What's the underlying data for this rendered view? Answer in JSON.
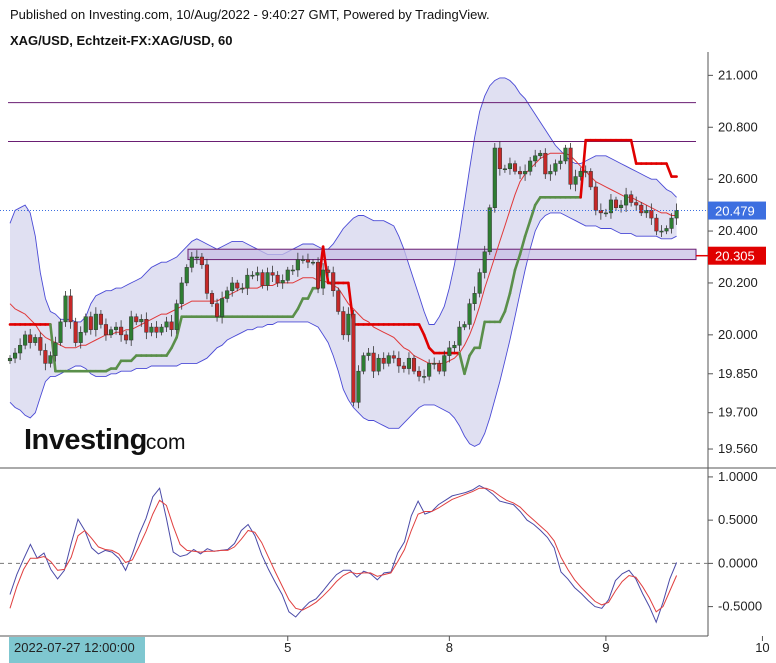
{
  "header": {
    "published": "Published on Investing.com, 10/Aug/2022 - 9:40:27 GMT, Powered by TradingView.",
    "symbol": "XAG/USD, Echtzeit-FX:XAG/USD, 60"
  },
  "brand": {
    "name": "Investing",
    "suffix": ".com"
  },
  "colors": {
    "band_fill": "#8f8fd0",
    "band_line": "#4b4bd6",
    "ma_line": "#e0393a",
    "supertrend_red": "#e00000",
    "supertrend_green": "#5a8f4a",
    "candle_up": "#2e7d32",
    "candle_down": "#c62828",
    "level_line": "#6a1e73",
    "zone_fill": "#c8c0e6",
    "last_price_box": "#3d6fe0",
    "red_box": "#e00000",
    "osc_blue": "#4b4ba8",
    "osc_red": "#e04040",
    "date_box": "#7fc7d0"
  },
  "chart_data": [
    {
      "type": "candlestick",
      "title": "XAG/USD, Echtzeit-FX:XAG/USD, 60",
      "yticks": [
        "21.000",
        "20.800",
        "20.600",
        "20.400",
        "20.200",
        "20.000",
        "19.850",
        "19.700",
        "19.560"
      ],
      "ylim": [
        19.51,
        21.09
      ],
      "x_ticks": [
        "5",
        "8",
        "9",
        "10"
      ],
      "x_tick_index": [
        55,
        87,
        118,
        149
      ],
      "cursor_label": "2022-07-27 12:00:00",
      "last_price": "20.479",
      "red_label": "20.305",
      "level_lines": [
        20.895,
        20.745
      ],
      "zone": [
        20.29,
        20.33
      ],
      "close": [
        19.91,
        19.93,
        19.96,
        20.0,
        19.97,
        19.99,
        19.94,
        19.89,
        19.92,
        19.97,
        20.05,
        20.15,
        20.05,
        19.97,
        20.01,
        20.07,
        20.02,
        20.08,
        20.04,
        20.0,
        20.02,
        20.03,
        20.0,
        19.98,
        20.07,
        20.05,
        20.06,
        20.01,
        20.03,
        20.01,
        20.03,
        20.05,
        20.02,
        20.12,
        20.2,
        20.26,
        20.3,
        20.3,
        20.27,
        20.16,
        20.12,
        20.07,
        20.14,
        20.17,
        20.2,
        20.18,
        20.18,
        20.23,
        20.23,
        20.24,
        20.19,
        20.24,
        20.23,
        20.2,
        20.21,
        20.25,
        20.25,
        20.29,
        20.29,
        20.28,
        20.28,
        20.18,
        20.25,
        20.24,
        20.17,
        20.09,
        20.0,
        20.08,
        19.74,
        19.86,
        19.92,
        19.93,
        19.86,
        19.91,
        19.89,
        19.92,
        19.91,
        19.88,
        19.87,
        19.91,
        19.86,
        19.84,
        19.84,
        19.89,
        19.89,
        19.86,
        19.92,
        19.95,
        19.96,
        20.03,
        20.04,
        20.12,
        20.16,
        20.24,
        20.32,
        20.49,
        20.72,
        20.64,
        20.64,
        20.66,
        20.63,
        20.62,
        20.63,
        20.67,
        20.69,
        20.7,
        20.62,
        20.63,
        20.66,
        20.67,
        20.72,
        20.58,
        20.61,
        20.63,
        20.63,
        20.57,
        20.48,
        20.47,
        20.47,
        20.52,
        20.49,
        20.5,
        20.54,
        20.51,
        20.5,
        20.47,
        20.48,
        20.45,
        20.4,
        20.4,
        20.41,
        20.45,
        20.48
      ],
      "bb_upper": [
        20.43,
        20.48,
        20.49,
        20.5,
        20.47,
        20.38,
        20.24,
        20.14,
        20.09,
        20.08,
        20.06,
        20.06,
        20.06,
        20.05,
        20.05,
        20.07,
        20.12,
        20.15,
        20.16,
        20.17,
        20.17,
        20.18,
        20.18,
        20.19,
        20.2,
        20.21,
        20.22,
        20.24,
        20.26,
        20.27,
        20.28,
        20.28,
        20.29,
        20.3,
        20.32,
        20.34,
        20.36,
        20.37,
        20.36,
        20.35,
        20.34,
        20.33,
        20.34,
        20.35,
        20.36,
        20.36,
        20.36,
        20.35,
        20.34,
        20.33,
        20.32,
        20.31,
        20.31,
        20.31,
        20.31,
        20.32,
        20.33,
        20.34,
        20.35,
        20.35,
        20.35,
        20.34,
        20.33,
        20.33,
        20.35,
        20.38,
        20.41,
        20.43,
        20.45,
        20.46,
        20.46,
        20.45,
        20.44,
        20.44,
        20.44,
        20.43,
        20.42,
        20.38,
        20.33,
        20.27,
        20.21,
        20.15,
        20.09,
        20.04,
        20.04,
        20.07,
        20.11,
        20.18,
        20.27,
        20.38,
        20.51,
        20.64,
        20.76,
        20.86,
        20.92,
        20.96,
        20.98,
        20.99,
        20.99,
        20.98,
        20.96,
        20.93,
        20.91,
        20.88,
        20.85,
        20.82,
        20.79,
        20.76,
        20.73,
        20.71,
        20.69,
        20.67,
        20.66,
        20.66,
        20.67,
        20.68,
        20.69,
        20.69,
        20.69,
        20.68,
        20.67,
        20.66,
        20.65,
        20.64,
        20.63,
        20.62,
        20.61,
        20.6,
        20.6,
        20.58,
        20.56,
        20.55,
        20.53
      ],
      "bb_lower": [
        19.74,
        19.72,
        19.71,
        19.69,
        19.68,
        19.7,
        19.76,
        19.82,
        19.84,
        19.84,
        19.85,
        19.86,
        19.87,
        19.88,
        19.88,
        19.87,
        19.85,
        19.84,
        19.84,
        19.84,
        19.85,
        19.85,
        19.86,
        19.86,
        19.86,
        19.87,
        19.87,
        19.87,
        19.88,
        19.88,
        19.88,
        19.88,
        19.88,
        19.88,
        19.89,
        19.89,
        19.89,
        19.89,
        19.9,
        19.91,
        19.93,
        19.95,
        19.96,
        19.98,
        19.99,
        20.0,
        20.01,
        20.02,
        20.02,
        20.03,
        20.03,
        20.04,
        20.04,
        20.05,
        20.05,
        20.05,
        20.05,
        20.05,
        20.05,
        20.05,
        20.04,
        20.03,
        20.0,
        19.97,
        19.92,
        19.86,
        19.79,
        19.75,
        19.72,
        19.7,
        19.68,
        19.67,
        19.67,
        19.66,
        19.65,
        19.64,
        19.64,
        19.64,
        19.66,
        19.68,
        19.7,
        19.72,
        19.73,
        19.73,
        19.73,
        19.72,
        19.71,
        19.7,
        19.68,
        19.65,
        19.61,
        19.58,
        19.57,
        19.58,
        19.62,
        19.68,
        19.75,
        19.82,
        19.9,
        19.98,
        20.07,
        20.16,
        20.25,
        20.33,
        20.4,
        20.44,
        20.46,
        20.47,
        20.47,
        20.47,
        20.46,
        20.45,
        20.44,
        20.43,
        20.42,
        20.42,
        20.42,
        20.41,
        20.41,
        20.41,
        20.4,
        20.39,
        20.39,
        20.39,
        20.38,
        20.38,
        20.38,
        20.38,
        20.38,
        20.37,
        20.37,
        20.37,
        20.38
      ],
      "sma": [
        20.12,
        20.1,
        20.09,
        20.08,
        20.06,
        20.04,
        20.01,
        19.99,
        19.98,
        19.97,
        19.96,
        19.95,
        19.95,
        19.95,
        19.96,
        19.96,
        19.97,
        19.98,
        19.99,
        20.0,
        20.0,
        20.01,
        20.01,
        20.02,
        20.02,
        20.03,
        20.04,
        20.05,
        20.06,
        20.07,
        20.08,
        20.08,
        20.09,
        20.1,
        20.11,
        20.12,
        20.13,
        20.13,
        20.13,
        20.13,
        20.13,
        20.13,
        20.14,
        20.15,
        20.16,
        20.17,
        20.18,
        20.18,
        20.18,
        20.18,
        20.19,
        20.19,
        20.19,
        20.2,
        20.2,
        20.2,
        20.2,
        20.21,
        20.22,
        20.22,
        20.22,
        20.21,
        20.21,
        20.2,
        20.19,
        20.18,
        20.15,
        20.12,
        20.1,
        20.08,
        20.06,
        20.05,
        20.03,
        20.02,
        20.01,
        20.0,
        19.99,
        19.97,
        19.95,
        19.94,
        19.92,
        19.91,
        19.9,
        19.89,
        19.89,
        19.89,
        19.89,
        19.9,
        19.91,
        19.93,
        19.96,
        20.0,
        20.05,
        20.11,
        20.18,
        20.24,
        20.3,
        20.36,
        20.42,
        20.48,
        20.54,
        20.59,
        20.62,
        20.64,
        20.66,
        20.68,
        20.69,
        20.7,
        20.7,
        20.7,
        20.7,
        20.69,
        20.67,
        20.65,
        20.63,
        20.61,
        20.59,
        20.58,
        20.57,
        20.56,
        20.55,
        20.54,
        20.53,
        20.53,
        20.52,
        20.51,
        20.5,
        20.49,
        20.48,
        20.47,
        20.47,
        20.46,
        20.46
      ],
      "supertrend": [
        20.04,
        20.04,
        20.04,
        20.04,
        20.04,
        20.04,
        20.04,
        20.04,
        20.04,
        19.86,
        19.86,
        19.86,
        19.86,
        19.86,
        19.86,
        19.86,
        19.86,
        19.86,
        19.86,
        19.86,
        19.87,
        19.87,
        19.9,
        19.9,
        19.9,
        19.92,
        19.92,
        19.92,
        19.92,
        19.92,
        19.92,
        19.92,
        19.95,
        19.99,
        20.07,
        20.07,
        20.07,
        20.07,
        20.07,
        20.07,
        20.07,
        20.07,
        20.07,
        20.07,
        20.07,
        20.07,
        20.07,
        20.07,
        20.07,
        20.07,
        20.07,
        20.07,
        20.07,
        20.07,
        20.07,
        20.07,
        20.07,
        20.1,
        20.14,
        20.14,
        20.18,
        20.18,
        20.34,
        20.2,
        20.2,
        20.2,
        20.2,
        20.2,
        20.04,
        20.04,
        20.04,
        20.04,
        20.04,
        20.04,
        20.04,
        20.04,
        20.04,
        20.04,
        20.04,
        20.04,
        20.04,
        20.04,
        20.0,
        19.95,
        19.93,
        19.93,
        19.93,
        19.93,
        19.93,
        19.93,
        19.85,
        19.92,
        19.95,
        19.95,
        20.05,
        20.05,
        20.05,
        20.05,
        20.09,
        20.16,
        20.25,
        20.31,
        20.38,
        20.44,
        20.5,
        20.53,
        20.53,
        20.53,
        20.53,
        20.53,
        20.53,
        20.53,
        20.53,
        20.53,
        20.75,
        20.75,
        20.75,
        20.75,
        20.75,
        20.75,
        20.75,
        20.75,
        20.75,
        20.75,
        20.66,
        20.66,
        20.66,
        20.66,
        20.66,
        20.66,
        20.66,
        20.61,
        20.61,
        20.56,
        20.56,
        20.5,
        20.5,
        20.5
      ],
      "supertrend_direction": [
        "down",
        "down",
        "down",
        "down",
        "down",
        "down",
        "down",
        "down",
        "down",
        "up",
        "up",
        "up",
        "up",
        "up",
        "up",
        "up",
        "up",
        "up",
        "up",
        "up",
        "up",
        "up",
        "up",
        "up",
        "up",
        "up",
        "up",
        "up",
        "up",
        "up",
        "up",
        "up",
        "up",
        "up",
        "up",
        "up",
        "up",
        "up",
        "up",
        "up",
        "up",
        "up",
        "up",
        "up",
        "up",
        "up",
        "up",
        "up",
        "up",
        "up",
        "up",
        "up",
        "up",
        "up",
        "up",
        "up",
        "up",
        "up",
        "up",
        "up",
        "up",
        "up",
        "down",
        "down",
        "down",
        "down",
        "down",
        "down",
        "down",
        "down",
        "down",
        "down",
        "down",
        "down",
        "down",
        "down",
        "down",
        "down",
        "down",
        "down",
        "down",
        "down",
        "down",
        "down",
        "down",
        "down",
        "down",
        "down",
        "down",
        "down",
        "up",
        "up",
        "up",
        "up",
        "up",
        "up",
        "up",
        "up",
        "up",
        "up",
        "up",
        "up",
        "up",
        "up",
        "up",
        "up",
        "up",
        "up",
        "up",
        "up",
        "up",
        "up",
        "up",
        "up",
        "down",
        "down",
        "down",
        "down",
        "down",
        "down",
        "down",
        "down",
        "down",
        "down",
        "down",
        "down",
        "down",
        "down",
        "down",
        "down",
        "down",
        "down",
        "down",
        "down",
        "down",
        "down",
        "down",
        "down"
      ]
    },
    {
      "type": "line",
      "series": [
        {
          "values": [
            -0.36,
            -0.13,
            0.05,
            0.22,
            0.06,
            0.12,
            -0.07,
            -0.18,
            -0.08,
            0.23,
            0.51,
            0.38,
            0.18,
            0.11,
            0.15,
            0.13,
            0.06,
            -0.08,
            0.11,
            0.34,
            0.52,
            0.77,
            0.87,
            0.52,
            0.13,
            0.08,
            0.1,
            0.16,
            0.11,
            0.17,
            0.14,
            0.15,
            0.16,
            0.23,
            0.38,
            0.45,
            0.32,
            0.1,
            -0.07,
            -0.22,
            -0.36,
            -0.56,
            -0.62,
            -0.53,
            -0.45,
            -0.41,
            -0.32,
            -0.22,
            -0.13,
            -0.08,
            -0.08,
            -0.16,
            -0.09,
            -0.12,
            -0.19,
            -0.11,
            -0.1,
            0.12,
            0.25,
            0.55,
            0.72,
            0.57,
            0.6,
            0.68,
            0.73,
            0.78,
            0.8,
            0.82,
            0.85,
            0.9,
            0.86,
            0.8,
            0.72,
            0.7,
            0.68,
            0.6,
            0.5,
            0.45,
            0.38,
            0.3,
            0.18,
            -0.1,
            -0.18,
            -0.28,
            -0.35,
            -0.43,
            -0.5,
            -0.52,
            -0.42,
            -0.2,
            -0.12,
            -0.08,
            -0.18,
            -0.35,
            -0.5,
            -0.68,
            -0.45,
            -0.18,
            0.01
          ]
        },
        {
          "values": [
            -0.52,
            -0.27,
            -0.07,
            0.06,
            0.06,
            0.08,
            0.02,
            -0.08,
            -0.07,
            0.07,
            0.32,
            0.38,
            0.29,
            0.19,
            0.16,
            0.15,
            0.11,
            0.01,
            0.04,
            0.2,
            0.37,
            0.57,
            0.73,
            0.67,
            0.43,
            0.22,
            0.15,
            0.14,
            0.13,
            0.14,
            0.14,
            0.15,
            0.15,
            0.19,
            0.28,
            0.38,
            0.36,
            0.24,
            0.07,
            -0.1,
            -0.26,
            -0.42,
            -0.52,
            -0.54,
            -0.5,
            -0.45,
            -0.38,
            -0.3,
            -0.21,
            -0.14,
            -0.1,
            -0.12,
            -0.11,
            -0.11,
            -0.15,
            -0.13,
            -0.11,
            0.02,
            0.16,
            0.38,
            0.57,
            0.6,
            0.6,
            0.64,
            0.69,
            0.74,
            0.77,
            0.8,
            0.83,
            0.87,
            0.87,
            0.84,
            0.78,
            0.73,
            0.7,
            0.65,
            0.57,
            0.5,
            0.43,
            0.36,
            0.26,
            0.07,
            -0.07,
            -0.19,
            -0.28,
            -0.36,
            -0.44,
            -0.48,
            -0.45,
            -0.32,
            -0.21,
            -0.14,
            -0.16,
            -0.27,
            -0.4,
            -0.56,
            -0.5,
            -0.32,
            -0.14
          ]
        }
      ],
      "yticks": [
        "1.0000",
        "0.5000",
        "0.0000",
        "-0.5000"
      ],
      "ylim": [
        -0.84,
        1.08
      ],
      "reference_line": 0
    }
  ]
}
